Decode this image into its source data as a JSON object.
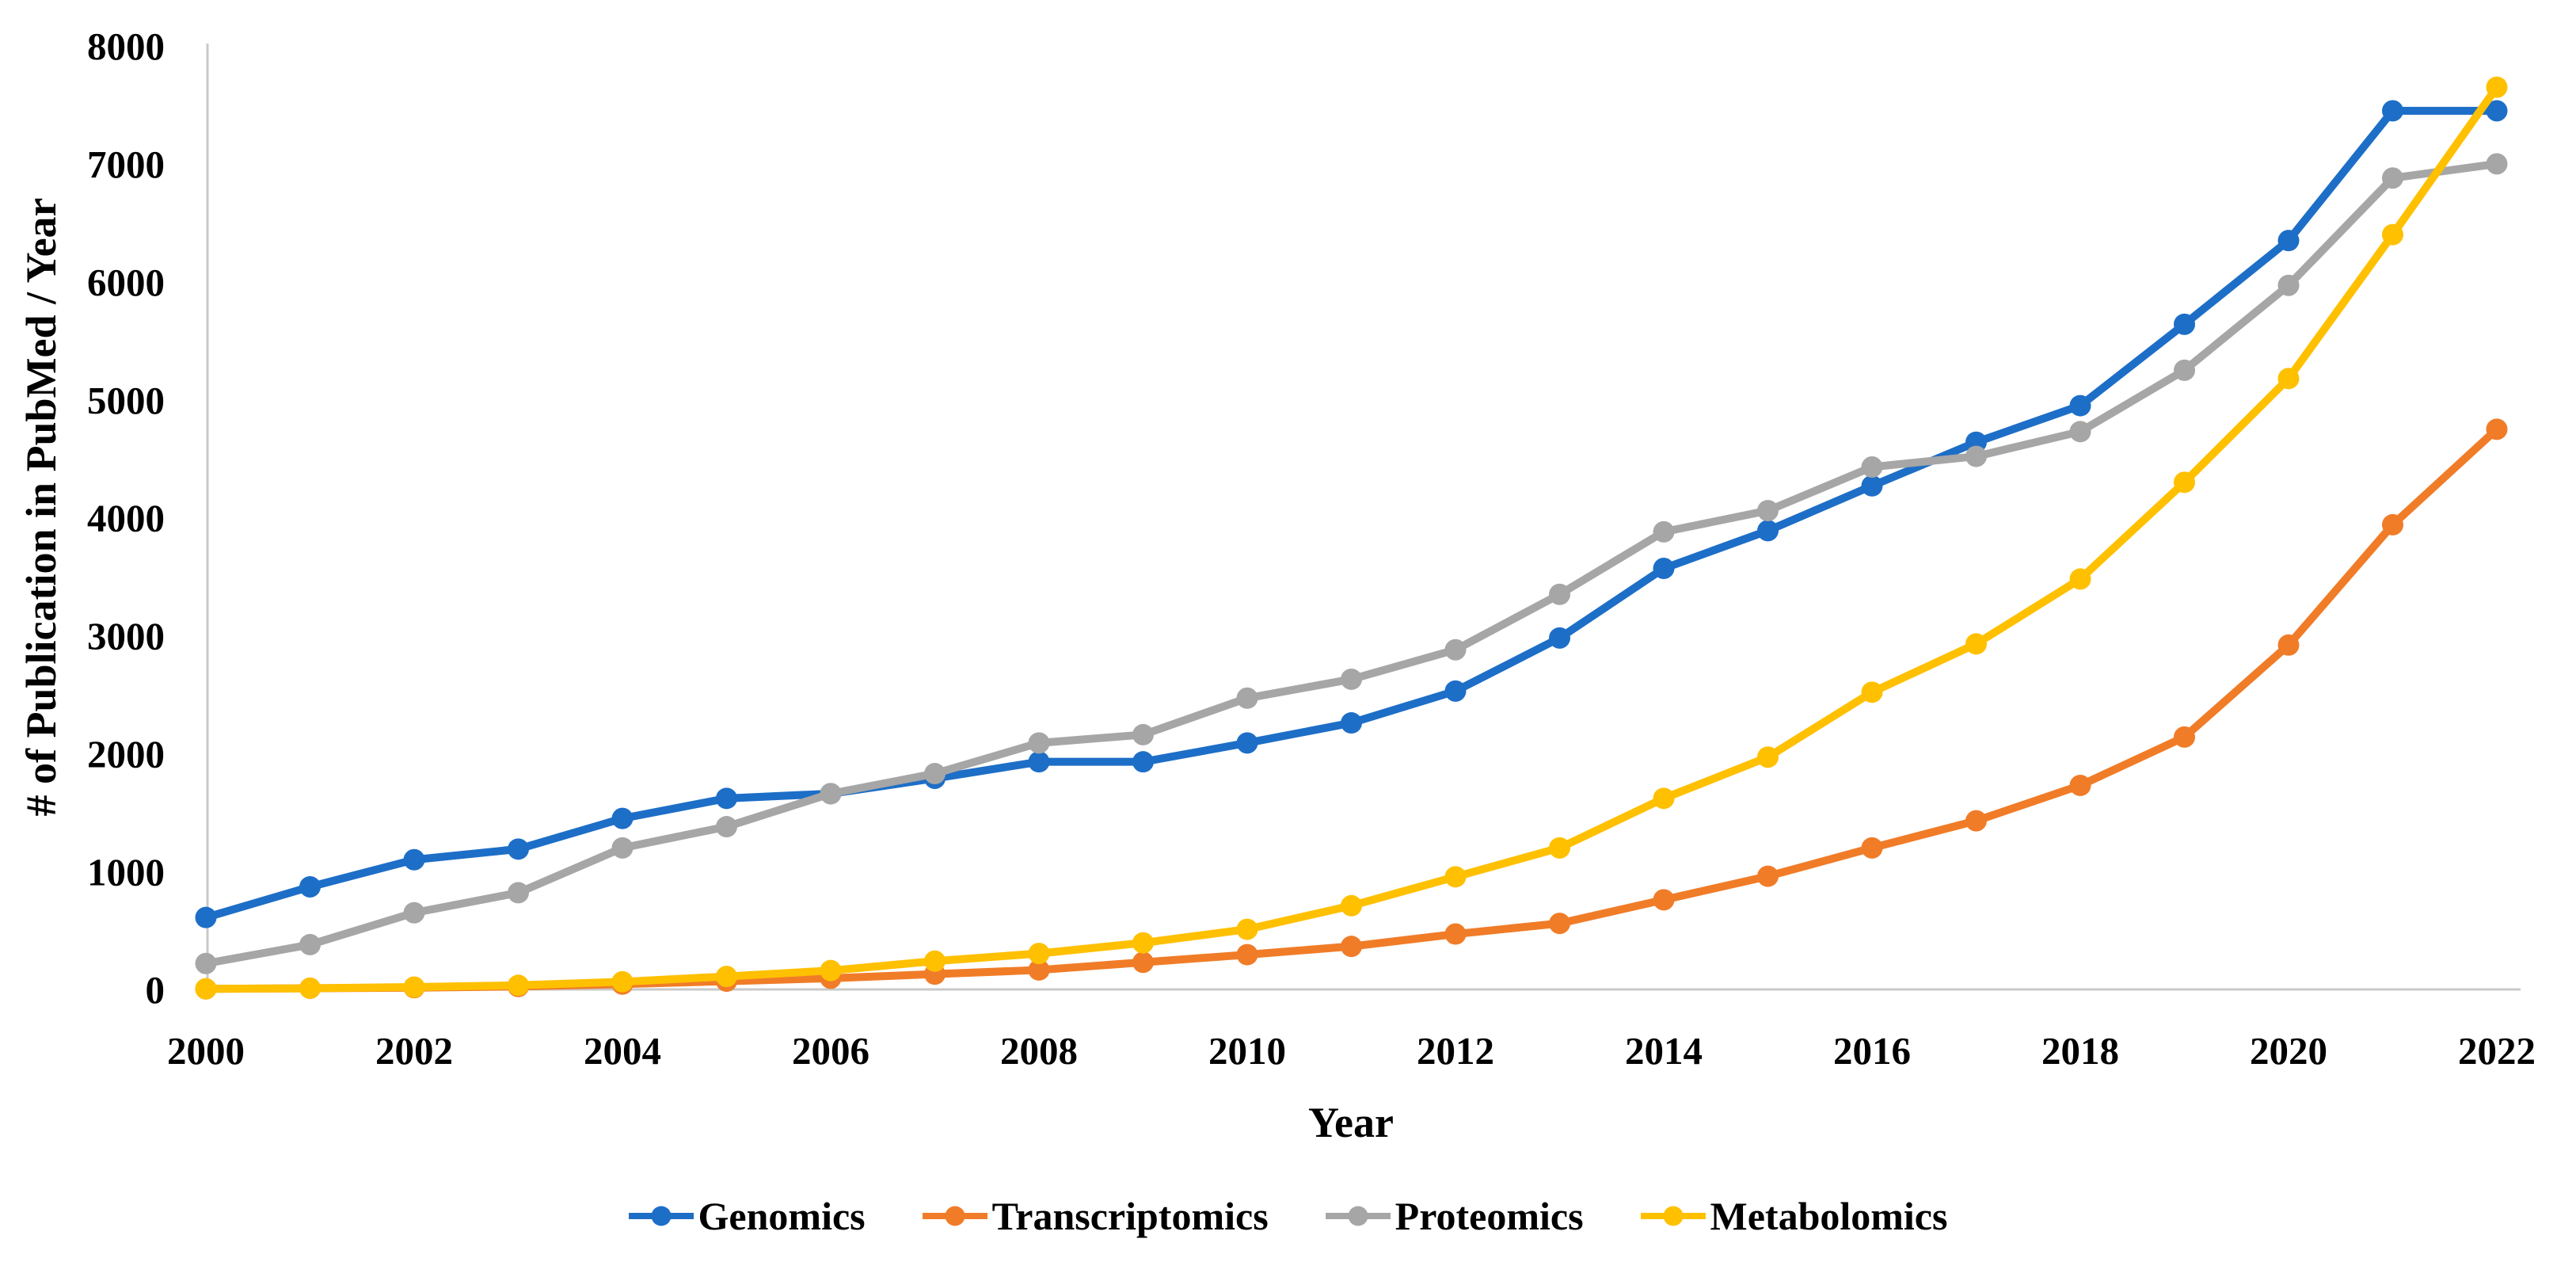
{
  "chart_data": {
    "type": "line",
    "title": "",
    "xlabel": "Year",
    "ylabel": "# of Publication in PubMed / Year",
    "x": [
      2000,
      2001,
      2002,
      2003,
      2004,
      2005,
      2006,
      2007,
      2008,
      2009,
      2010,
      2011,
      2012,
      2013,
      2014,
      2015,
      2016,
      2017,
      2018,
      2019,
      2020,
      2021,
      2022
    ],
    "x_tick_labels": [
      "2000",
      "2002",
      "2004",
      "2006",
      "2008",
      "2010",
      "2012",
      "2014",
      "2016",
      "2018",
      "2020",
      "2022"
    ],
    "ylim": [
      0,
      8000
    ],
    "y_ticks": [
      0,
      1000,
      2000,
      3000,
      4000,
      5000,
      6000,
      7000,
      8000
    ],
    "grid": false,
    "legend_position": "bottom",
    "series": [
      {
        "name": "Genomics",
        "color": "#1D6EC7",
        "values": [
          610,
          870,
          1100,
          1190,
          1450,
          1620,
          1660,
          1790,
          1930,
          1930,
          2090,
          2260,
          2530,
          2980,
          3570,
          3890,
          4270,
          4640,
          4950,
          5640,
          6350,
          7450,
          7450
        ]
      },
      {
        "name": "Transcriptomics",
        "color": "#F07C28",
        "values": [
          5,
          10,
          15,
          25,
          45,
          70,
          95,
          130,
          165,
          230,
          295,
          365,
          470,
          560,
          760,
          960,
          1200,
          1430,
          1730,
          2140,
          2920,
          3940,
          4750
        ]
      },
      {
        "name": "Proteomics",
        "color": "#A6A6A6",
        "values": [
          220,
          380,
          650,
          820,
          1200,
          1380,
          1660,
          1830,
          2090,
          2160,
          2470,
          2630,
          2880,
          3350,
          3880,
          4060,
          4430,
          4520,
          4730,
          5250,
          5970,
          6880,
          7000
        ]
      },
      {
        "name": "Metabolomics",
        "color": "#FFC000",
        "values": [
          5,
          10,
          20,
          35,
          65,
          110,
          160,
          240,
          305,
          395,
          510,
          710,
          955,
          1200,
          1620,
          1970,
          2520,
          2930,
          3480,
          4300,
          5180,
          6400,
          7650
        ]
      }
    ],
    "style": {
      "axis_line_color": "#C9C9C9",
      "line_width": 10,
      "marker_radius": 13.5,
      "text_color": "#000000"
    }
  }
}
